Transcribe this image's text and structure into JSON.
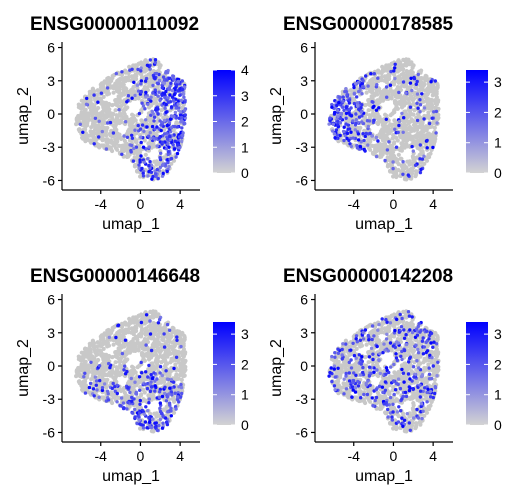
{
  "colors": {
    "low": "#d3d3d3",
    "high": "#0000ff",
    "background": "#c8c8c8"
  },
  "chart_data": [
    {
      "type": "scatter",
      "title": "ENSG00000110092",
      "xlabel": "umap_1",
      "ylabel": "umap_2",
      "xticks": [
        "-4",
        "0",
        "4"
      ],
      "yticks": [
        "6",
        "3",
        "0",
        "-3",
        "-6"
      ],
      "xlim": [
        -7.5,
        6.0
      ],
      "ylim": [
        -6.5,
        6.5
      ],
      "legend": {
        "type": "colorbar",
        "position": "right",
        "ticks": [
          "4",
          "3",
          "2",
          "1",
          "0"
        ],
        "max": 4
      },
      "expression_region": "right"
    },
    {
      "type": "scatter",
      "title": "ENSG00000178585",
      "xlabel": "umap_1",
      "ylabel": "umap_2",
      "xticks": [
        "-4",
        "0",
        "4"
      ],
      "yticks": [
        "6",
        "3",
        "0",
        "-3",
        "-6"
      ],
      "xlim": [
        -7.5,
        6.0
      ],
      "ylim": [
        -6.5,
        6.5
      ],
      "legend": {
        "type": "colorbar",
        "position": "right",
        "ticks": [
          "3",
          "2",
          "1",
          "0"
        ],
        "max": 3.4
      },
      "expression_region": "left"
    },
    {
      "type": "scatter",
      "title": "ENSG00000146648",
      "xlabel": "umap_1",
      "ylabel": "umap_2",
      "xticks": [
        "-4",
        "0",
        "4"
      ],
      "yticks": [
        "6",
        "3",
        "0",
        "-3",
        "-6"
      ],
      "xlim": [
        -7.5,
        6.0
      ],
      "ylim": [
        -6.5,
        6.5
      ],
      "legend": {
        "type": "colorbar",
        "position": "right",
        "ticks": [
          "3",
          "2",
          "1",
          "0"
        ],
        "max": 3.4
      },
      "expression_region": "bottom"
    },
    {
      "type": "scatter",
      "title": "ENSG00000142208",
      "xlabel": "umap_1",
      "ylabel": "umap_2",
      "xticks": [
        "-4",
        "0",
        "4"
      ],
      "yticks": [
        "6",
        "3",
        "0",
        "-3",
        "-6"
      ],
      "xlim": [
        -7.5,
        6.0
      ],
      "ylim": [
        -6.5,
        6.5
      ],
      "legend": {
        "type": "colorbar",
        "position": "right",
        "ticks": [
          "3",
          "2",
          "1",
          "0"
        ],
        "max": 3.4
      },
      "expression_region": "uniform"
    }
  ]
}
